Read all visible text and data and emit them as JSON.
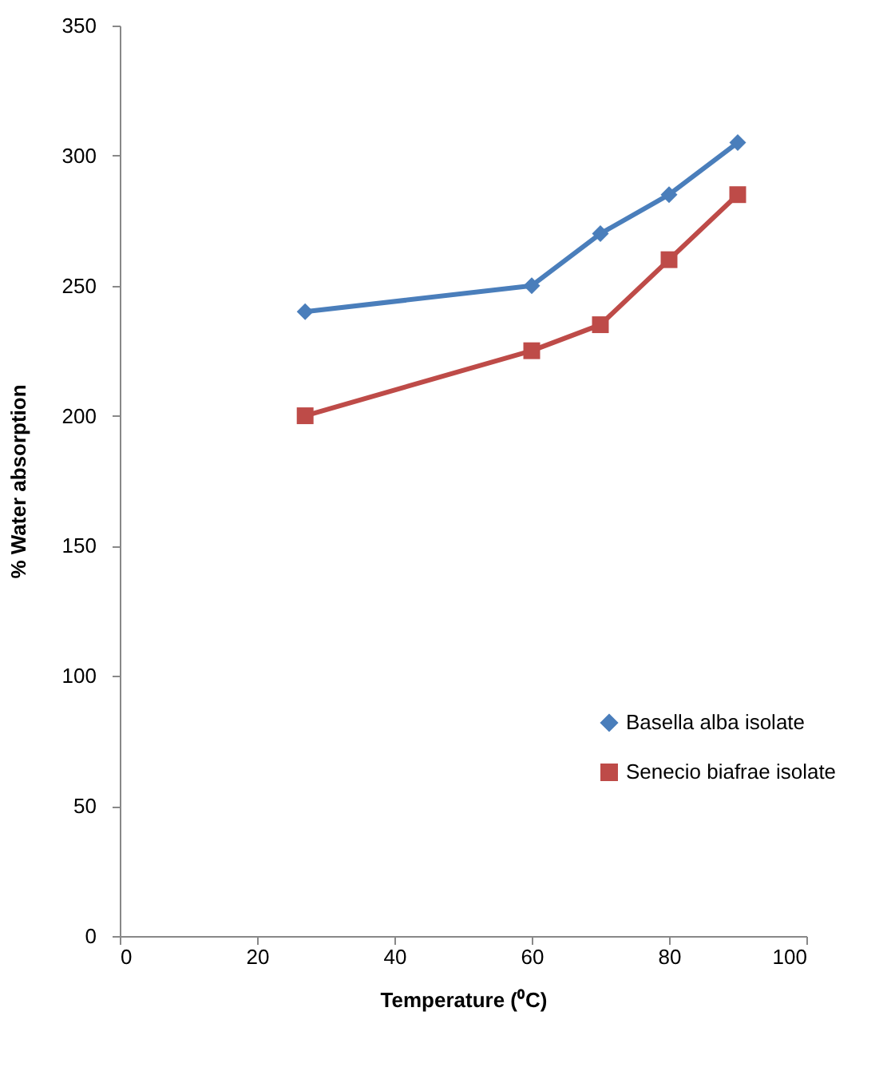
{
  "chart_data": {
    "type": "line",
    "xlabel": "Temperature (⁰C)",
    "ylabel": "% Water absorption",
    "x": [
      27,
      60,
      70,
      80,
      90
    ],
    "series": [
      {
        "name": "Basella alba isolate",
        "color": "#4a7ebb",
        "values": [
          240,
          250,
          270,
          285,
          305
        ],
        "marker": "diamond"
      },
      {
        "name": "Senecio biafrae isolate",
        "color": "#be4b48",
        "values": [
          200,
          225,
          235,
          260,
          285
        ],
        "marker": "square"
      }
    ],
    "xlim": [
      0,
      100
    ],
    "xticks": [
      0,
      20,
      40,
      60,
      80,
      100
    ],
    "ylim": [
      0,
      350
    ],
    "yticks": [
      0,
      50,
      100,
      150,
      200,
      250,
      300,
      350
    ],
    "grid": false,
    "legend": "bottom right",
    "line_style": "solid"
  }
}
